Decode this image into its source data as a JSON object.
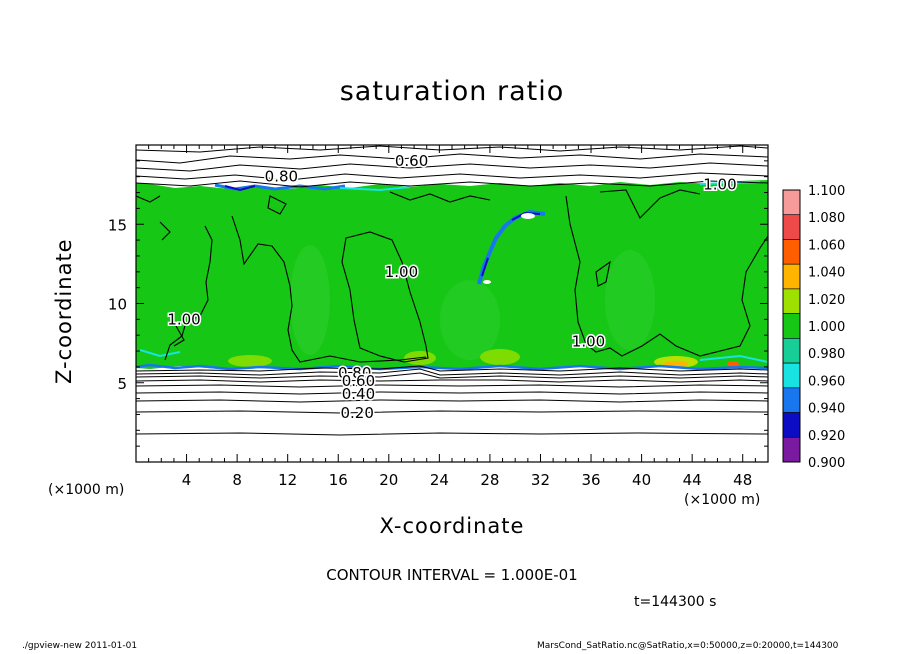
{
  "chart_data": {
    "type": "heatmap",
    "title": "saturation ratio",
    "xlabel": "X-coordinate",
    "ylabel": "Z-coordinate",
    "x_unit": "(×1000 m)",
    "z_unit": "(×1000 m)",
    "xlim": [
      0,
      50
    ],
    "ylim": [
      0,
      20
    ],
    "x_ticks": [
      4,
      8,
      12,
      16,
      20,
      24,
      28,
      32,
      36,
      40,
      44,
      48
    ],
    "y_ticks": [
      5,
      10,
      15
    ],
    "colorbar": {
      "levels": [
        "1.100",
        "1.080",
        "1.060",
        "1.040",
        "1.020",
        "1.000",
        "0.980",
        "0.960",
        "0.940",
        "0.920",
        "0.900"
      ],
      "colors": [
        "#f79a9a",
        "#ee4a4a",
        "#ff5e00",
        "#ffb400",
        "#9ee000",
        "#16c716",
        "#17cf96",
        "#18e2e2",
        "#1877ee",
        "#0c0cc4",
        "#7a1aa0"
      ]
    },
    "contour_labels": [
      {
        "text": "0.60",
        "x": 21.8,
        "z": 19.0
      },
      {
        "text": "0.80",
        "x": 11.5,
        "z": 18.0
      },
      {
        "text": "1.00",
        "x": 46.2,
        "z": 17.5
      },
      {
        "text": "1.00",
        "x": 21.0,
        "z": 12.0
      },
      {
        "text": "1.00",
        "x": 3.8,
        "z": 9.0
      },
      {
        "text": "1.00",
        "x": 35.8,
        "z": 7.6
      },
      {
        "text": "0.80",
        "x": 17.3,
        "z": 5.6
      },
      {
        "text": "0.60",
        "x": 17.6,
        "z": 5.1
      },
      {
        "text": "0.40",
        "x": 17.6,
        "z": 4.3
      },
      {
        "text": "0.20",
        "x": 17.5,
        "z": 3.1
      }
    ],
    "contour_interval": "CONTOUR INTERVAL = 1.000E-01",
    "time_label": "t=144300 s"
  },
  "footer": {
    "left": "./gpview-new   2011-01-01",
    "right": "MarsCond_SatRatio.nc@SatRatio,x=0:50000,z=0:20000,t=144300"
  }
}
